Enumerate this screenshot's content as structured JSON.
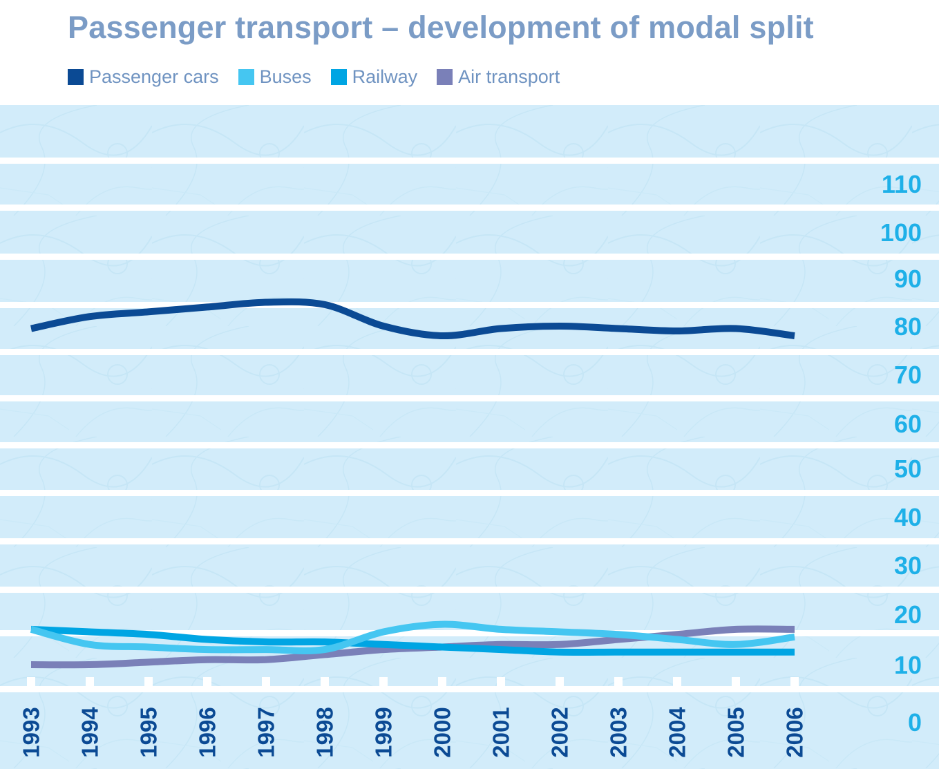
{
  "chart_data": {
    "type": "line",
    "title": "Passenger transport – development of modal split",
    "x": [
      "1993",
      "1994",
      "1995",
      "1996",
      "1997",
      "1998",
      "1999",
      "2000",
      "2001",
      "2002",
      "2003",
      "2004",
      "2005",
      "2006"
    ],
    "yticks": [
      "110",
      "100",
      "90",
      "80",
      "70",
      "60",
      "50",
      "40",
      "30",
      "20",
      "10",
      "0"
    ],
    "ylim": [
      0,
      110
    ],
    "grid": true,
    "legend_position": "top",
    "series": [
      {
        "name": "Passenger cars",
        "color": "#0b4a94",
        "values": [
          79.5,
          82,
          83,
          84,
          85,
          84.5,
          80,
          78,
          79.5,
          80,
          79.5,
          79,
          79.5,
          78
        ]
      },
      {
        "name": "Buses",
        "color": "#45c6f1",
        "values": [
          17,
          14,
          13.5,
          13,
          13,
          13,
          16.5,
          18,
          17,
          16.5,
          16,
          15,
          14,
          15.5
        ]
      },
      {
        "name": "Railway",
        "color": "#00a5e3",
        "values": [
          17,
          16.5,
          16,
          15,
          14.5,
          14.5,
          14,
          13.5,
          13,
          12.5,
          12.5,
          12.5,
          12.5,
          12.5
        ]
      },
      {
        "name": "Air transport",
        "color": "#7a80b8",
        "values": [
          10,
          10,
          10.5,
          11,
          11,
          12,
          13,
          13.5,
          14,
          14,
          15,
          16,
          17,
          17
        ]
      }
    ]
  }
}
